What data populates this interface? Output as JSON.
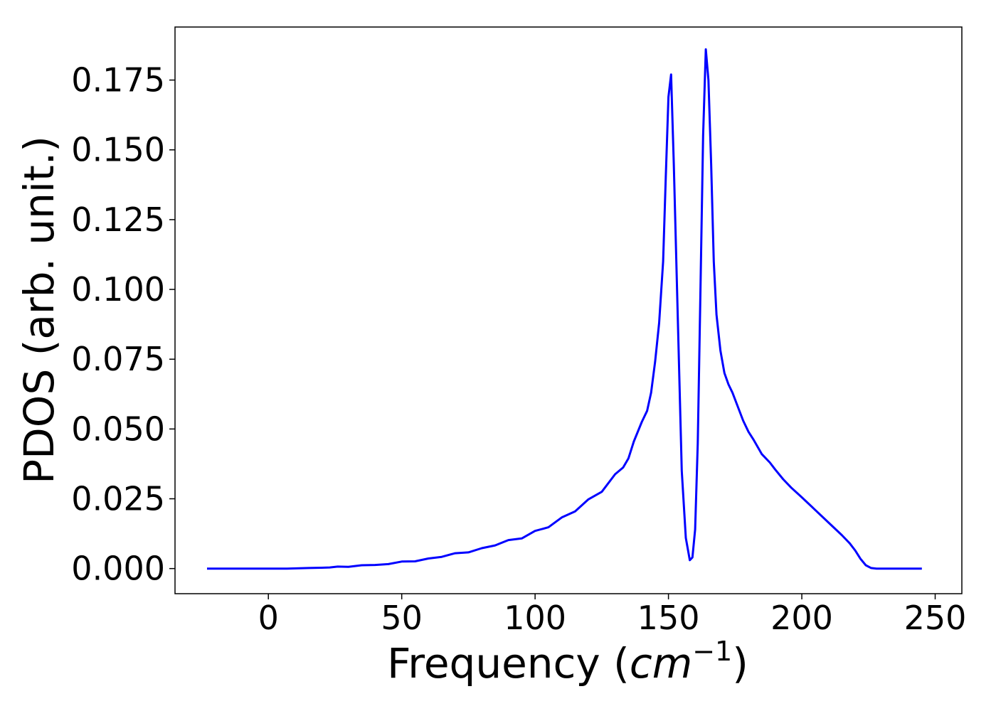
{
  "chart_data": {
    "type": "line",
    "title": "",
    "xlabel_main": "Frequency (",
    "xlabel_math": "cm",
    "xlabel_sup": "−1",
    "xlabel_close": ")",
    "ylabel": "PDOS (arb. unit.)",
    "xlim": [
      -35,
      260
    ],
    "ylim": [
      -0.009,
      0.194
    ],
    "xticks": [
      0,
      50,
      100,
      150,
      200,
      250
    ],
    "xtick_labels": [
      "0",
      "50",
      "100",
      "150",
      "200",
      "250"
    ],
    "yticks": [
      0.0,
      0.025,
      0.05,
      0.075,
      0.1,
      0.125,
      0.15,
      0.175
    ],
    "ytick_labels": [
      "0.000",
      "0.025",
      "0.050",
      "0.075",
      "0.100",
      "0.125",
      "0.150",
      "0.175"
    ],
    "grid": false,
    "legend": false,
    "series": [
      {
        "color": "#0000ff",
        "x": [
          -23,
          0,
          7,
          15,
          20,
          23,
          26,
          30,
          35,
          40,
          45,
          50,
          55,
          60,
          65,
          70,
          75,
          80,
          85,
          90,
          95,
          100,
          105,
          110,
          115,
          120,
          125,
          130,
          133,
          135,
          137,
          140,
          142,
          143.5,
          145,
          146.5,
          148,
          149,
          150,
          151,
          152,
          153.5,
          155,
          156.5,
          158,
          159,
          160,
          161,
          162,
          163,
          164,
          165,
          166,
          167,
          168,
          169.5,
          171,
          172.5,
          174,
          176,
          178,
          180,
          182,
          185,
          188,
          190,
          193,
          196,
          200,
          205,
          210,
          215,
          218,
          220,
          222,
          224,
          226,
          228,
          232,
          238,
          245
        ],
        "y": [
          0.0,
          0.0,
          0.0,
          0.0002,
          0.0003,
          0.0004,
          0.0007,
          0.0006,
          0.0012,
          0.0013,
          0.0016,
          0.0025,
          0.0026,
          0.0036,
          0.0042,
          0.0055,
          0.0058,
          0.0073,
          0.0083,
          0.0102,
          0.0108,
          0.0135,
          0.0148,
          0.0183,
          0.0205,
          0.0248,
          0.0275,
          0.0338,
          0.0362,
          0.0395,
          0.0455,
          0.0525,
          0.0565,
          0.063,
          0.074,
          0.088,
          0.11,
          0.14,
          0.169,
          0.177,
          0.145,
          0.09,
          0.035,
          0.011,
          0.003,
          0.004,
          0.014,
          0.045,
          0.1,
          0.155,
          0.186,
          0.175,
          0.145,
          0.11,
          0.091,
          0.078,
          0.07,
          0.066,
          0.063,
          0.058,
          0.053,
          0.049,
          0.046,
          0.041,
          0.038,
          0.0355,
          0.032,
          0.029,
          0.0255,
          0.021,
          0.0165,
          0.012,
          0.009,
          0.0065,
          0.0035,
          0.0012,
          0.0002,
          0.0,
          0.0,
          0.0,
          0.0
        ]
      }
    ]
  }
}
